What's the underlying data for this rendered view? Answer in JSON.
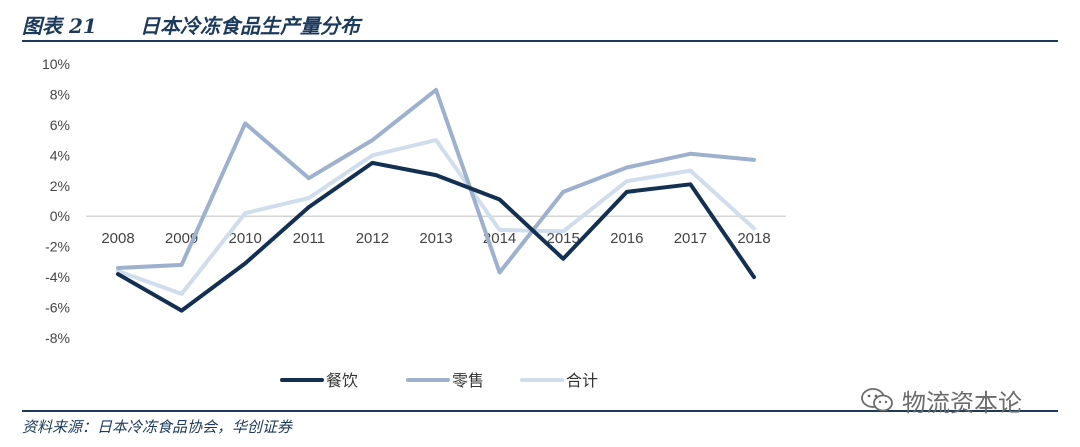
{
  "header": {
    "figure_no": "图表 21",
    "title": "日本冷冻食品生产量分布"
  },
  "footer": {
    "source": "资料来源：日本冷冻食品协会，华创证券"
  },
  "watermark": {
    "text": "物流资本论",
    "icon": "wechat-icon"
  },
  "chart_data": {
    "type": "line",
    "title": "",
    "xlabel": "",
    "ylabel": "",
    "categories": [
      "2008",
      "2009",
      "2010",
      "2011",
      "2012",
      "2013",
      "2014",
      "2015",
      "2016",
      "2017",
      "2018"
    ],
    "ylim": [
      -8,
      10
    ],
    "yticks": [
      10,
      8,
      6,
      4,
      2,
      0,
      -2,
      -4,
      -6,
      -8
    ],
    "ytick_labels": [
      "10%",
      "8%",
      "6%",
      "4%",
      "2%",
      "0%",
      "-2%",
      "-4%",
      "-6%",
      "-8%"
    ],
    "y_unit": "%",
    "grid": false,
    "legend": "bottom",
    "series": [
      {
        "name": "餐饮",
        "color": "#132f52",
        "values": [
          -3.8,
          -6.2,
          -3.1,
          0.6,
          3.5,
          2.7,
          1.1,
          -2.8,
          1.6,
          2.1,
          -4.0
        ]
      },
      {
        "name": "零售",
        "color": "#9db1cf",
        "values": [
          -3.4,
          -3.2,
          6.1,
          2.5,
          5.0,
          8.3,
          -3.7,
          1.6,
          3.2,
          4.1,
          3.7
        ]
      },
      {
        "name": "合计",
        "color": "#cfdded",
        "values": [
          -3.6,
          -5.1,
          0.2,
          1.2,
          4.0,
          5.0,
          -0.9,
          -1.0,
          2.3,
          3.0,
          -0.8
        ]
      }
    ]
  }
}
